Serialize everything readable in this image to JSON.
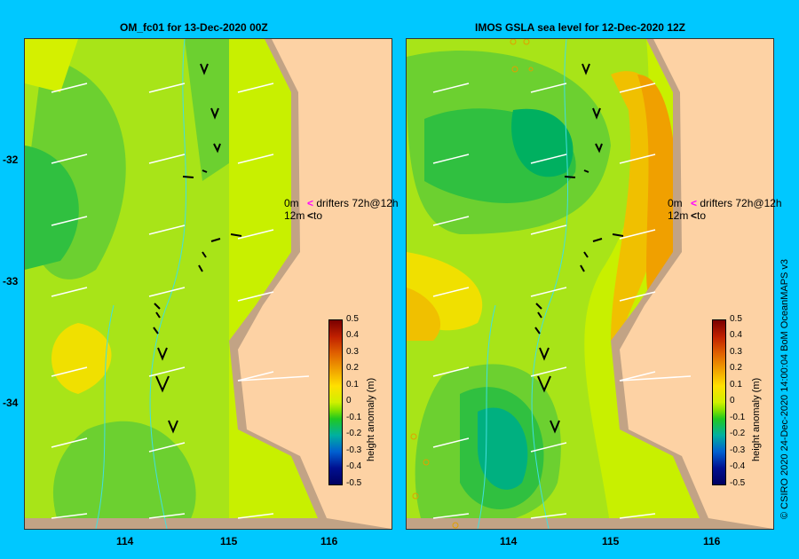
{
  "titles": {
    "left": "OM_fc01  for 13-Dec-2020 00Z",
    "right": "IMOS GSLA sea level  for 12-Dec-2020 12Z"
  },
  "axes": {
    "y_ticks": [
      "-32",
      "-33",
      "-34"
    ],
    "x_ticks": [
      "114",
      "115",
      "116"
    ]
  },
  "legend": {
    "drifter_top_left": "0m",
    "drifter_top_right": "drifters 72h@12h",
    "drifter_bottom_left": "12m",
    "drifter_bottom_right": "to",
    "colorbar_title": "height anomaly  (m)",
    "colorbar_ticks": [
      "0.5",
      "0.4",
      "0.3",
      "0.2",
      "0.1",
      "0",
      "-0.1",
      "-0.2",
      "-0.3",
      "-0.4",
      "-0.5"
    ]
  },
  "credit": "© CSIRO 2020   24-Dec-2020 14:00:04 BoM OceanMAPS v3",
  "colors": {
    "background": "#00c8ff",
    "land": "#fdd2a4",
    "shelf": "#c2a385",
    "drifter_surface": "#ff00ff",
    "drifter_depth": "#000000"
  }
}
